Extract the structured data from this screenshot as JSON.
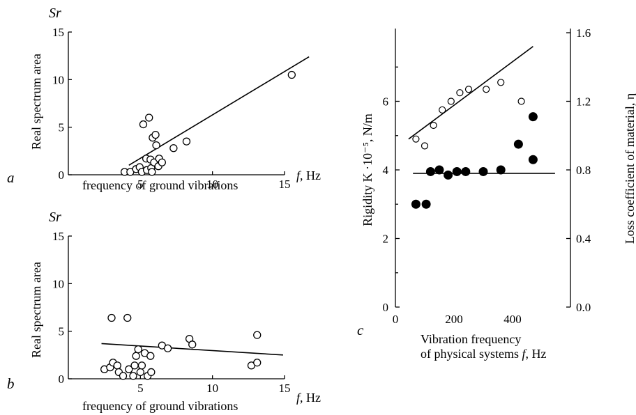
{
  "chart_data": [
    {
      "id": "a",
      "type": "scatter",
      "panel_label": "a",
      "y_symbol": "Sr",
      "ylabel": "Real spectrum area",
      "xlabel": "frequency of ground vibrations",
      "x_unit_symbol": "f",
      "x_unit": ", Hz",
      "xlim": [
        0,
        15
      ],
      "ylim": [
        0,
        15
      ],
      "xticks": [
        "5",
        "10",
        "15"
      ],
      "yticks": [
        "0",
        "5",
        "10",
        "15"
      ],
      "points": [
        [
          3.9,
          0.3
        ],
        [
          4.3,
          0.3
        ],
        [
          4.7,
          0.6
        ],
        [
          4.95,
          0.8
        ],
        [
          5.1,
          0.3
        ],
        [
          5.2,
          5.3
        ],
        [
          5.4,
          1.7
        ],
        [
          5.45,
          0.5
        ],
        [
          5.6,
          6.0
        ],
        [
          5.7,
          1.6
        ],
        [
          5.75,
          0.7
        ],
        [
          5.8,
          0.3
        ],
        [
          5.85,
          3.9
        ],
        [
          5.95,
          1.3
        ],
        [
          6.05,
          4.2
        ],
        [
          6.1,
          3.1
        ],
        [
          6.25,
          0.9
        ],
        [
          6.3,
          1.7
        ],
        [
          6.5,
          1.3
        ],
        [
          7.3,
          2.8
        ],
        [
          8.2,
          3.5
        ],
        [
          15.5,
          10.5
        ]
      ],
      "fit": [
        [
          4.2,
          1.0
        ],
        [
          16.7,
          12.4
        ]
      ]
    },
    {
      "id": "b",
      "type": "scatter",
      "panel_label": "b",
      "y_symbol": "Sr",
      "ylabel": "Real spectrum area",
      "xlabel": "frequency of ground vibrations",
      "x_unit_symbol": "f",
      "x_unit": ", Hz",
      "xlim": [
        0,
        15
      ],
      "ylim": [
        0,
        15
      ],
      "xticks": [
        "5",
        "10",
        "15"
      ],
      "yticks": [
        "0",
        "5",
        "10",
        "15"
      ],
      "points": [
        [
          2.5,
          1.0
        ],
        [
          2.9,
          1.2
        ],
        [
          3.0,
          6.4
        ],
        [
          3.1,
          1.7
        ],
        [
          3.4,
          1.4
        ],
        [
          3.5,
          0.7
        ],
        [
          3.8,
          0.3
        ],
        [
          4.1,
          6.4
        ],
        [
          4.2,
          1.0
        ],
        [
          4.5,
          0.3
        ],
        [
          4.6,
          1.4
        ],
        [
          4.7,
          2.4
        ],
        [
          4.85,
          3.1
        ],
        [
          5.0,
          0.7
        ],
        [
          5.1,
          1.4
        ],
        [
          5.3,
          2.7
        ],
        [
          5.5,
          0.3
        ],
        [
          5.7,
          2.4
        ],
        [
          5.75,
          0.7
        ],
        [
          6.5,
          3.5
        ],
        [
          6.9,
          3.2
        ],
        [
          8.4,
          4.2
        ],
        [
          8.6,
          3.6
        ],
        [
          12.7,
          1.4
        ],
        [
          13.1,
          1.7
        ],
        [
          13.1,
          4.6
        ]
      ],
      "fit": [
        [
          2.3,
          3.7
        ],
        [
          14.9,
          2.5
        ]
      ]
    },
    {
      "id": "c",
      "type": "scatter",
      "panel_label": "c",
      "ylabel": "Rigidity K ·10⁻⁵, N/m",
      "y2label": "Loss coefficient of material, η",
      "xlabel_line1": "Vibration frequency",
      "xlabel_line2_pre": "of physical systems ",
      "xlabel_line2_sym": "f",
      "xlabel_line2_post": ", Hz",
      "xlim": [
        0,
        580
      ],
      "ylim": [
        0,
        8
      ],
      "y2lim": [
        0.0,
        1.6
      ],
      "xticks": [
        "0",
        "200",
        "400"
      ],
      "yticks": [
        "0",
        "2",
        "4",
        "6"
      ],
      "y2ticks": [
        "0.0",
        "0.4",
        "0.8",
        "1.2",
        "1.6"
      ],
      "series": [
        {
          "marker": "open-circle",
          "axis": "left",
          "points": [
            [
              70,
              4.9
            ],
            [
              100,
              4.7
            ],
            [
              130,
              5.3
            ],
            [
              160,
              5.75
            ],
            [
              190,
              6.0
            ],
            [
              220,
              6.25
            ],
            [
              250,
              6.35
            ],
            [
              310,
              6.35
            ],
            [
              360,
              6.55
            ],
            [
              430,
              6.0
            ]
          ],
          "fit": [
            [
              45,
              4.9
            ],
            [
              470,
              7.6
            ]
          ]
        },
        {
          "marker": "filled-circle",
          "axis": "right",
          "points": [
            [
              70,
              0.6
            ],
            [
              105,
              0.6
            ],
            [
              120,
              0.79
            ],
            [
              150,
              0.8
            ],
            [
              180,
              0.77
            ],
            [
              210,
              0.79
            ],
            [
              240,
              0.79
            ],
            [
              300,
              0.79
            ],
            [
              360,
              0.8
            ],
            [
              420,
              0.95
            ],
            [
              470,
              0.86
            ],
            [
              470,
              1.11
            ]
          ],
          "fit": [
            [
              60,
              0.78
            ],
            [
              545,
              0.78
            ]
          ]
        }
      ]
    }
  ]
}
